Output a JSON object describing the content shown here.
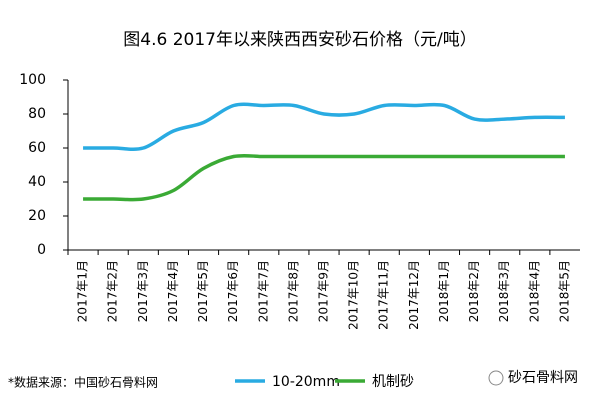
{
  "chart_data": {
    "type": "line",
    "title": "图4.6 2017年以来陕西西安砂石价格（元/吨）",
    "categories": [
      "2017年1月",
      "2017年2月",
      "2017年3月",
      "2017年4月",
      "2017年5月",
      "2017年6月",
      "2017年7月",
      "2017年8月",
      "2017年9月",
      "2017年10月",
      "2017年11月",
      "2017年12月",
      "2018年1月",
      "2018年2月",
      "2018年3月",
      "2018年4月",
      "2018年5月"
    ],
    "series": [
      {
        "name": "10-20mm",
        "color": "#29abe2",
        "values": [
          60,
          60,
          60,
          70,
          75,
          85,
          85,
          85,
          80,
          80,
          85,
          85,
          85,
          77,
          77,
          78,
          78
        ]
      },
      {
        "name": "机制砂",
        "color": "#3aaa35",
        "values": [
          30,
          30,
          30,
          35,
          48,
          55,
          55,
          55,
          55,
          55,
          55,
          55,
          55,
          55,
          55,
          55,
          55
        ]
      }
    ],
    "ylim": [
      0,
      100
    ],
    "yticks": [
      0,
      20,
      40,
      60,
      80,
      100
    ],
    "source": "*数据来源：中国砂石骨料网",
    "logo": "砂石骨料网"
  }
}
